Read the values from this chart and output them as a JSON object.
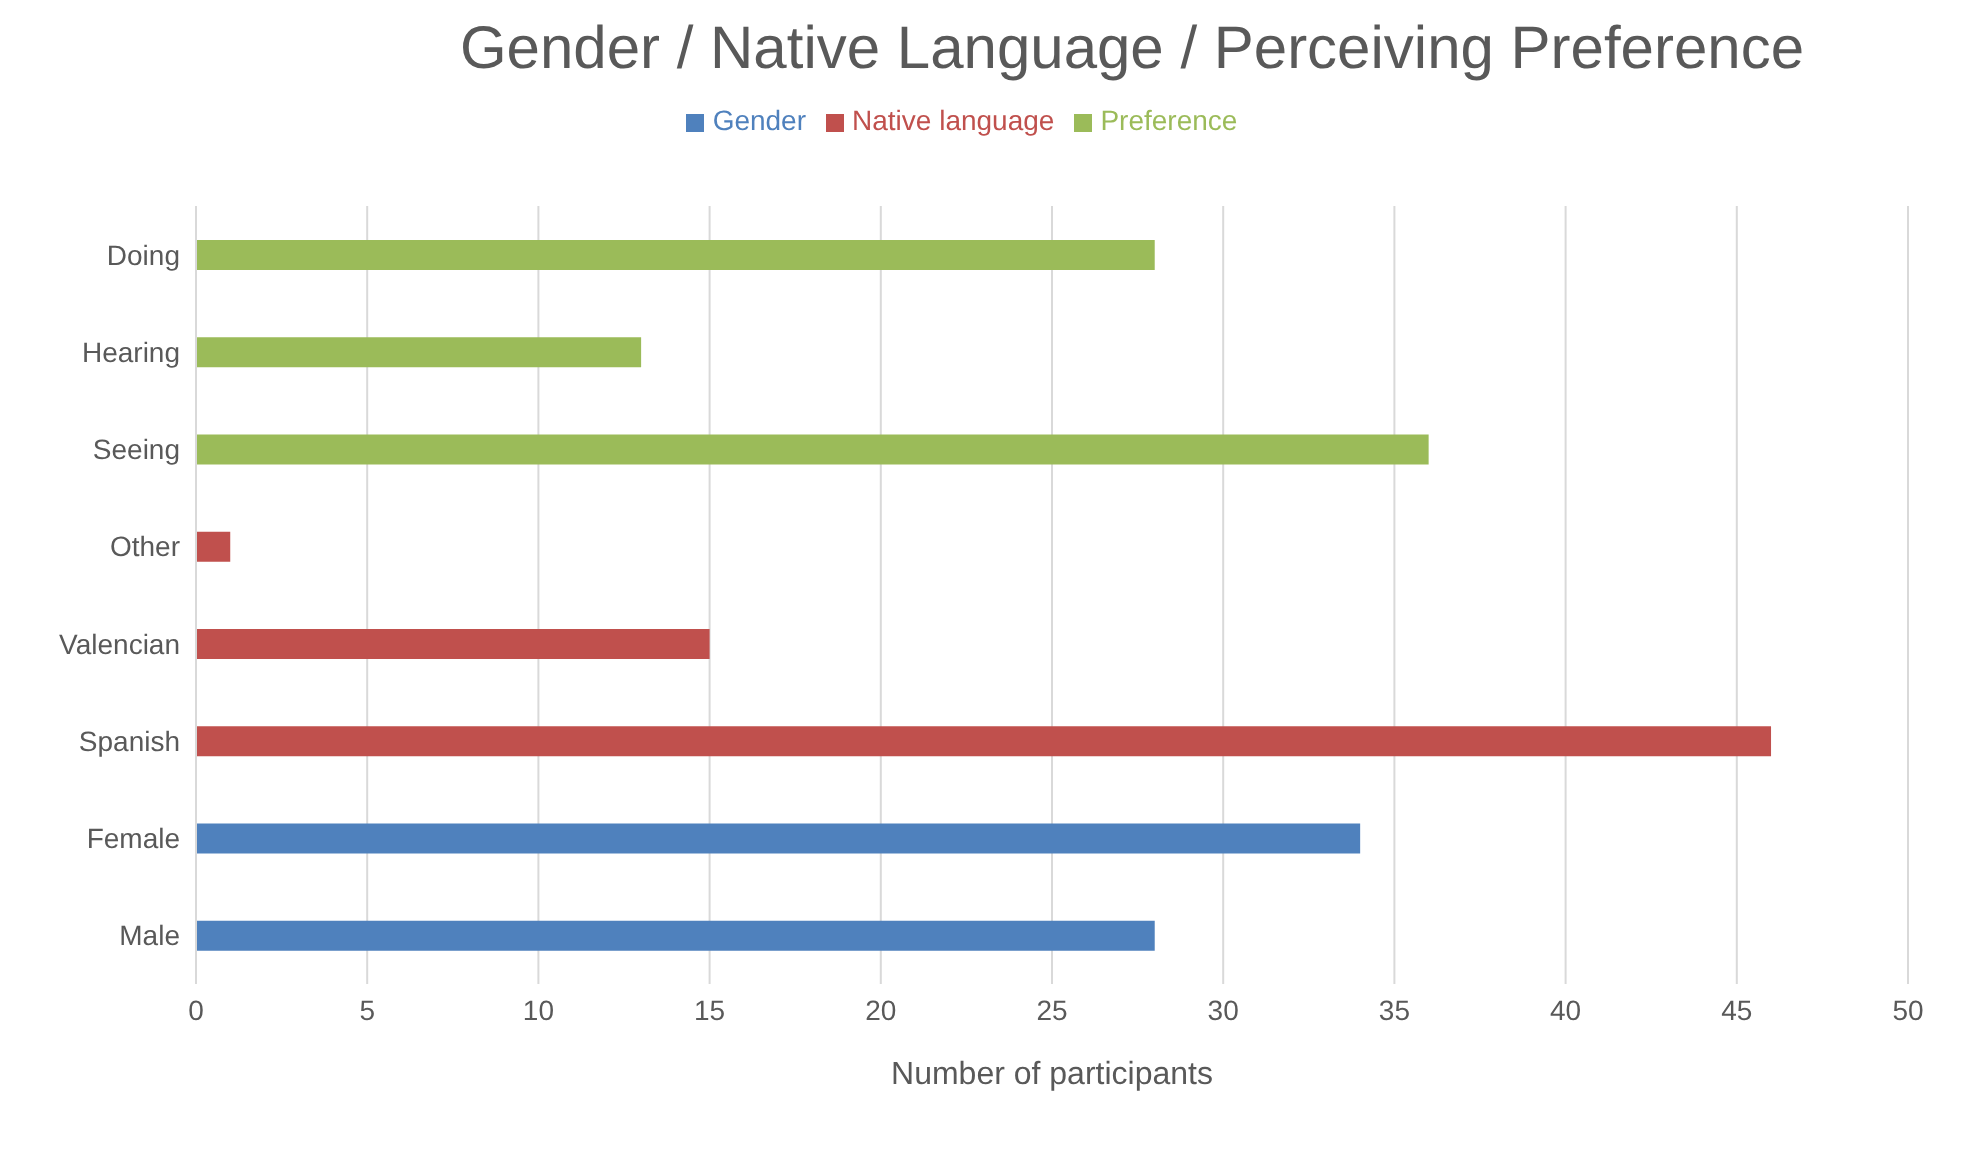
{
  "chart_data": {
    "type": "bar",
    "orientation": "horizontal",
    "stacked": true,
    "title": "Gender / Native Language  / Perceiving Preference",
    "xlabel": "Number of participants",
    "categories": [
      "Doing",
      "Hearing",
      "Seeing",
      "Other",
      "Valencian",
      "Spanish",
      "Female",
      "Male"
    ],
    "series": [
      {
        "name": "Gender",
        "color": "#4f81bd",
        "values": [
          null,
          null,
          null,
          null,
          null,
          null,
          34,
          28
        ]
      },
      {
        "name": "Native language",
        "color": "#c0504d",
        "values": [
          null,
          null,
          null,
          1,
          15,
          46,
          null,
          null
        ]
      },
      {
        "name": "Preference",
        "color": "#9bbb59",
        "values": [
          28,
          13,
          36,
          null,
          null,
          null,
          null,
          null
        ]
      }
    ],
    "xlim": [
      0,
      50
    ],
    "xticks": [
      0,
      5,
      10,
      15,
      20,
      25,
      30,
      35,
      40,
      45,
      50
    ],
    "grid": "x",
    "legend": "top"
  }
}
